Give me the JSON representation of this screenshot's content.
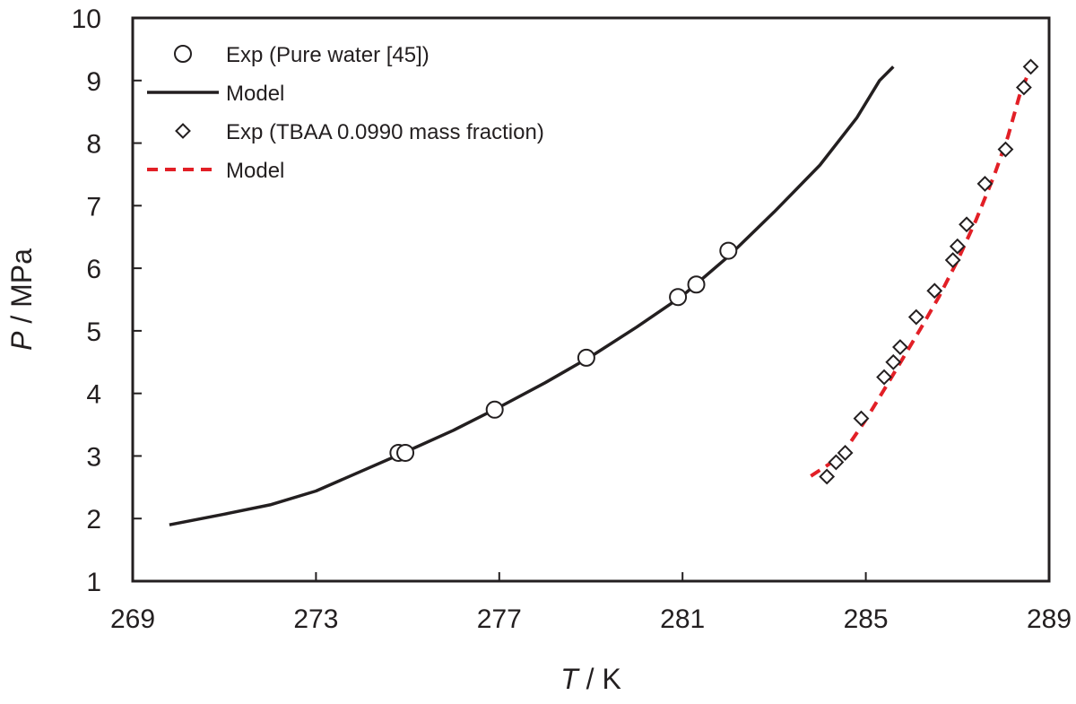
{
  "chart_data": {
    "type": "scatter",
    "xlabel": {
      "var": "T",
      "unit": " / K"
    },
    "ylabel": {
      "var": "P",
      "unit": " / MPa"
    },
    "xlim": [
      269,
      289
    ],
    "ylim": [
      1,
      10
    ],
    "xticks": [
      "269",
      "273",
      "277",
      "281",
      "285",
      "289"
    ],
    "yticks": [
      "1",
      "2",
      "3",
      "4",
      "5",
      "6",
      "7",
      "8",
      "9",
      "10"
    ],
    "grid": false,
    "legend_position": "top-left",
    "series": [
      {
        "name": "Exp (Pure water [45])",
        "kind": "markers",
        "marker": "circle",
        "color": "#231f20",
        "points": [
          [
            274.8,
            3.05
          ],
          [
            274.95,
            3.05
          ],
          [
            276.9,
            3.74
          ],
          [
            278.9,
            4.57
          ],
          [
            280.9,
            5.54
          ],
          [
            281.3,
            5.74
          ],
          [
            282.0,
            6.28
          ]
        ]
      },
      {
        "name": "Model",
        "kind": "line",
        "dash": "solid",
        "color": "#231f20",
        "points": [
          [
            269.8,
            1.9
          ],
          [
            271.0,
            2.07
          ],
          [
            272.0,
            2.22
          ],
          [
            273.0,
            2.44
          ],
          [
            274.0,
            2.76
          ],
          [
            275.0,
            3.08
          ],
          [
            276.0,
            3.41
          ],
          [
            277.0,
            3.78
          ],
          [
            278.0,
            4.17
          ],
          [
            279.0,
            4.59
          ],
          [
            280.0,
            5.06
          ],
          [
            281.0,
            5.56
          ],
          [
            282.0,
            6.19
          ],
          [
            283.0,
            6.9
          ],
          [
            284.0,
            7.65
          ],
          [
            284.8,
            8.4
          ],
          [
            285.3,
            9.0
          ],
          [
            285.6,
            9.22
          ]
        ]
      },
      {
        "name": "Exp (TBAA 0.0990 mass fraction)",
        "kind": "markers",
        "marker": "diamond",
        "color": "#231f20",
        "points": [
          [
            284.15,
            2.67
          ],
          [
            284.35,
            2.9
          ],
          [
            284.55,
            3.05
          ],
          [
            284.9,
            3.6
          ],
          [
            285.4,
            4.26
          ],
          [
            285.6,
            4.5
          ],
          [
            285.75,
            4.74
          ],
          [
            286.1,
            5.22
          ],
          [
            286.5,
            5.64
          ],
          [
            286.9,
            6.13
          ],
          [
            287.0,
            6.35
          ],
          [
            287.2,
            6.7
          ],
          [
            287.6,
            7.35
          ],
          [
            288.05,
            7.9
          ],
          [
            288.45,
            8.89
          ],
          [
            288.6,
            9.22
          ]
        ]
      },
      {
        "name": "Model",
        "kind": "line",
        "dash": "dashed",
        "color": "#e21f26",
        "points": [
          [
            283.8,
            2.68
          ],
          [
            284.2,
            2.87
          ],
          [
            284.6,
            3.15
          ],
          [
            285.0,
            3.58
          ],
          [
            285.4,
            4.06
          ],
          [
            285.8,
            4.55
          ],
          [
            286.2,
            5.04
          ],
          [
            286.6,
            5.55
          ],
          [
            287.0,
            6.12
          ],
          [
            287.4,
            6.76
          ],
          [
            287.8,
            7.48
          ],
          [
            288.1,
            8.1
          ],
          [
            288.35,
            8.75
          ],
          [
            288.6,
            9.22
          ]
        ]
      }
    ]
  }
}
